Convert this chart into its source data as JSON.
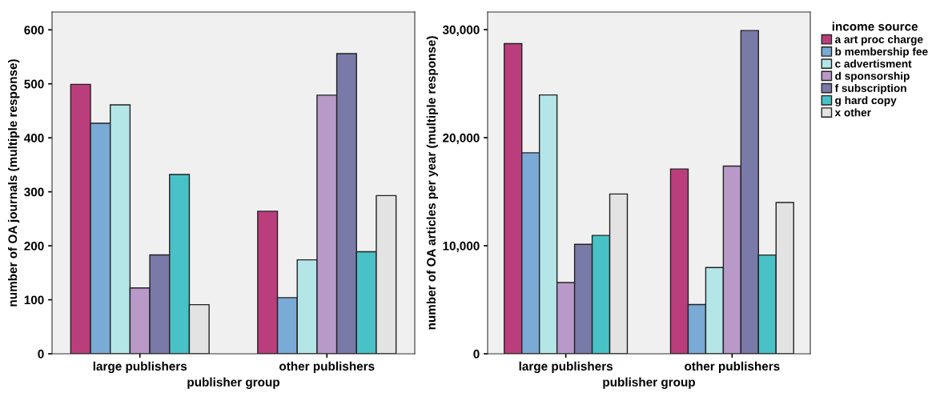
{
  "chart_data": [
    {
      "type": "bar",
      "xlabel": "publisher group",
      "ylabel": "number of OA journals (multiple response)",
      "categories": [
        "large publishers",
        "other publishers"
      ],
      "ylim": [
        0,
        633
      ],
      "yticks": [
        0,
        100,
        200,
        300,
        400,
        500,
        600
      ],
      "grid": false,
      "legend": false,
      "series": [
        {
          "color": "#bb3e7c",
          "values": [
            499,
            264
          ]
        },
        {
          "color": "#7aaad6",
          "values": [
            427,
            104
          ]
        },
        {
          "color": "#b4e6e8",
          "values": [
            461,
            174
          ]
        },
        {
          "color": "#b899c8",
          "values": [
            122,
            479
          ]
        },
        {
          "color": "#7a7aa8",
          "values": [
            183,
            556
          ]
        },
        {
          "color": "#48c2c6",
          "values": [
            332,
            189
          ]
        },
        {
          "color": "#e3e3e3",
          "values": [
            91,
            293
          ]
        }
      ]
    },
    {
      "type": "bar",
      "xlabel": "publisher group",
      "ylabel": "number of OA articles per year (multiple response)",
      "categories": [
        "large publishers",
        "other publishers"
      ],
      "ylim": [
        0,
        31630
      ],
      "yticks": [
        {
          "value": 0,
          "label": "0"
        },
        {
          "value": 10000,
          "label": "10,000"
        },
        {
          "value": 20000,
          "label": "20,000"
        },
        {
          "value": 30000,
          "label": "30,000"
        }
      ],
      "grid": false,
      "legend": "right",
      "legend_title": "income source",
      "series": [
        {
          "name": "a art proc charge",
          "color": "#bb3e7c",
          "values": [
            28700,
            17100
          ]
        },
        {
          "name": "b membership fee",
          "color": "#7aaad6",
          "values": [
            18600,
            4560
          ]
        },
        {
          "name": "c advertisment",
          "color": "#b4e6e8",
          "values": [
            23950,
            7980
          ]
        },
        {
          "name": "d sponsorship",
          "color": "#b899c8",
          "values": [
            6590,
            17370
          ]
        },
        {
          "name": "f subscription",
          "color": "#7a7aa8",
          "values": [
            10130,
            29920
          ]
        },
        {
          "name": "g hard copy",
          "color": "#48c2c6",
          "values": [
            10950,
            9140
          ]
        },
        {
          "name": "x other",
          "color": "#e3e3e3",
          "values": [
            14790,
            14000
          ]
        }
      ]
    }
  ]
}
